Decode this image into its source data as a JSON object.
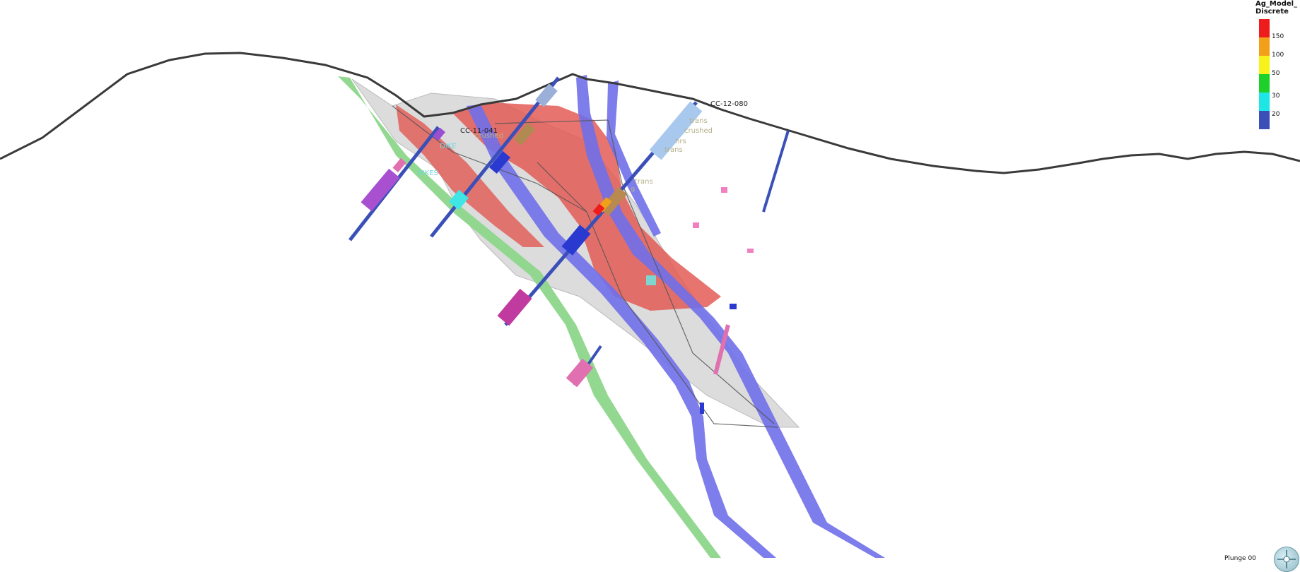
{
  "legend": {
    "title": "Ag_Model_\nDiscrete",
    "entries": [
      {
        "label": "150",
        "color": "#ee1c1c"
      },
      {
        "label": "100",
        "color": "#f2a01a"
      },
      {
        "label": "50",
        "color": "#f6f21a"
      },
      {
        "label": "30",
        "color": "#1ed02a"
      },
      {
        "label": "20",
        "color": "#1ee6e6"
      },
      {
        "label": "",
        "color": "#3a50b8"
      }
    ]
  },
  "drillholes": {
    "hole_1": "CC-11-041",
    "hole_2": "CC-12-080"
  },
  "faint_labels": {
    "l1": "trans",
    "l2": "crushed",
    "l3": "hrs",
    "l4": "trans",
    "l5": "trans",
    "l6": "9",
    "l7": "crushed",
    "l8": "DIKE",
    "l9": "DIKES"
  },
  "status": {
    "plunge": "Plunge 00"
  },
  "colors": {
    "topography": "#3a3a3a",
    "red_vein": "#e55a52",
    "grey_body": "#d2d2d2",
    "green_fault": "#8cd68a",
    "blue_fault": "#7070ea",
    "pink_interval": "#e070b0"
  }
}
